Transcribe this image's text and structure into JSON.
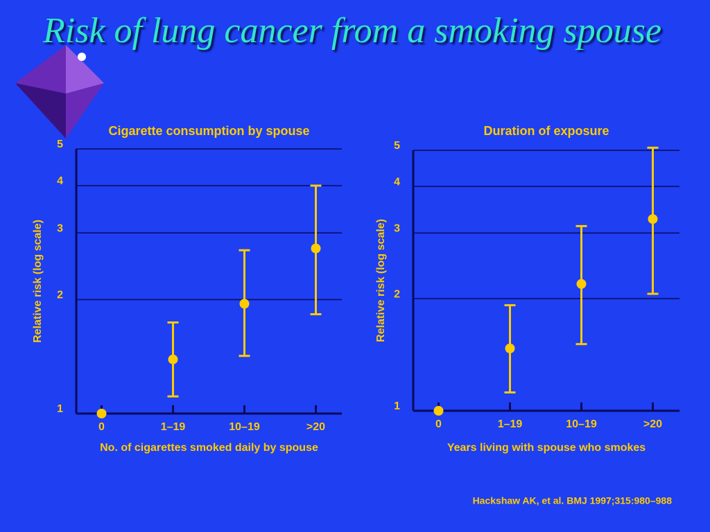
{
  "title": "Risk of lung cancer from a smoking spouse",
  "citation": "Hackshaw AK, et al. BMJ 1997;315:980–988",
  "chart_data": [
    {
      "type": "errorbar",
      "title": "Cigarette consumption by spouse",
      "x_label": "No. of cigarettes smoked daily by spouse",
      "y_label": "Relative risk (log scale)",
      "categories": [
        "0",
        "1–19",
        "10–19",
        ">20"
      ],
      "values": [
        1,
        1.39,
        1.95,
        2.73
      ],
      "lower": [
        null,
        1.11,
        1.42,
        1.83
      ],
      "upper": [
        null,
        1.74,
        2.7,
        4.0
      ],
      "color": "#ffcc00",
      "log_scale": true,
      "grid": true,
      "ylim": [
        1,
        5
      ],
      "yticks": [
        1,
        2,
        3,
        4,
        5
      ]
    },
    {
      "type": "errorbar",
      "title": "Duration of exposure",
      "x_label": "Years living with spouse who smokes",
      "y_label": "Relative risk (log scale)",
      "categories": [
        "0",
        "1–19",
        "10–19",
        ">20"
      ],
      "values": [
        1,
        1.47,
        2.19,
        3.27
      ],
      "lower": [
        null,
        1.12,
        1.51,
        2.06
      ],
      "upper": [
        null,
        1.92,
        3.13,
        5.08
      ],
      "color": "#ffcc00",
      "log_scale": true,
      "grid": true,
      "ylim": [
        1,
        5
      ],
      "yticks": [
        1,
        2,
        3,
        4,
        5
      ]
    }
  ]
}
